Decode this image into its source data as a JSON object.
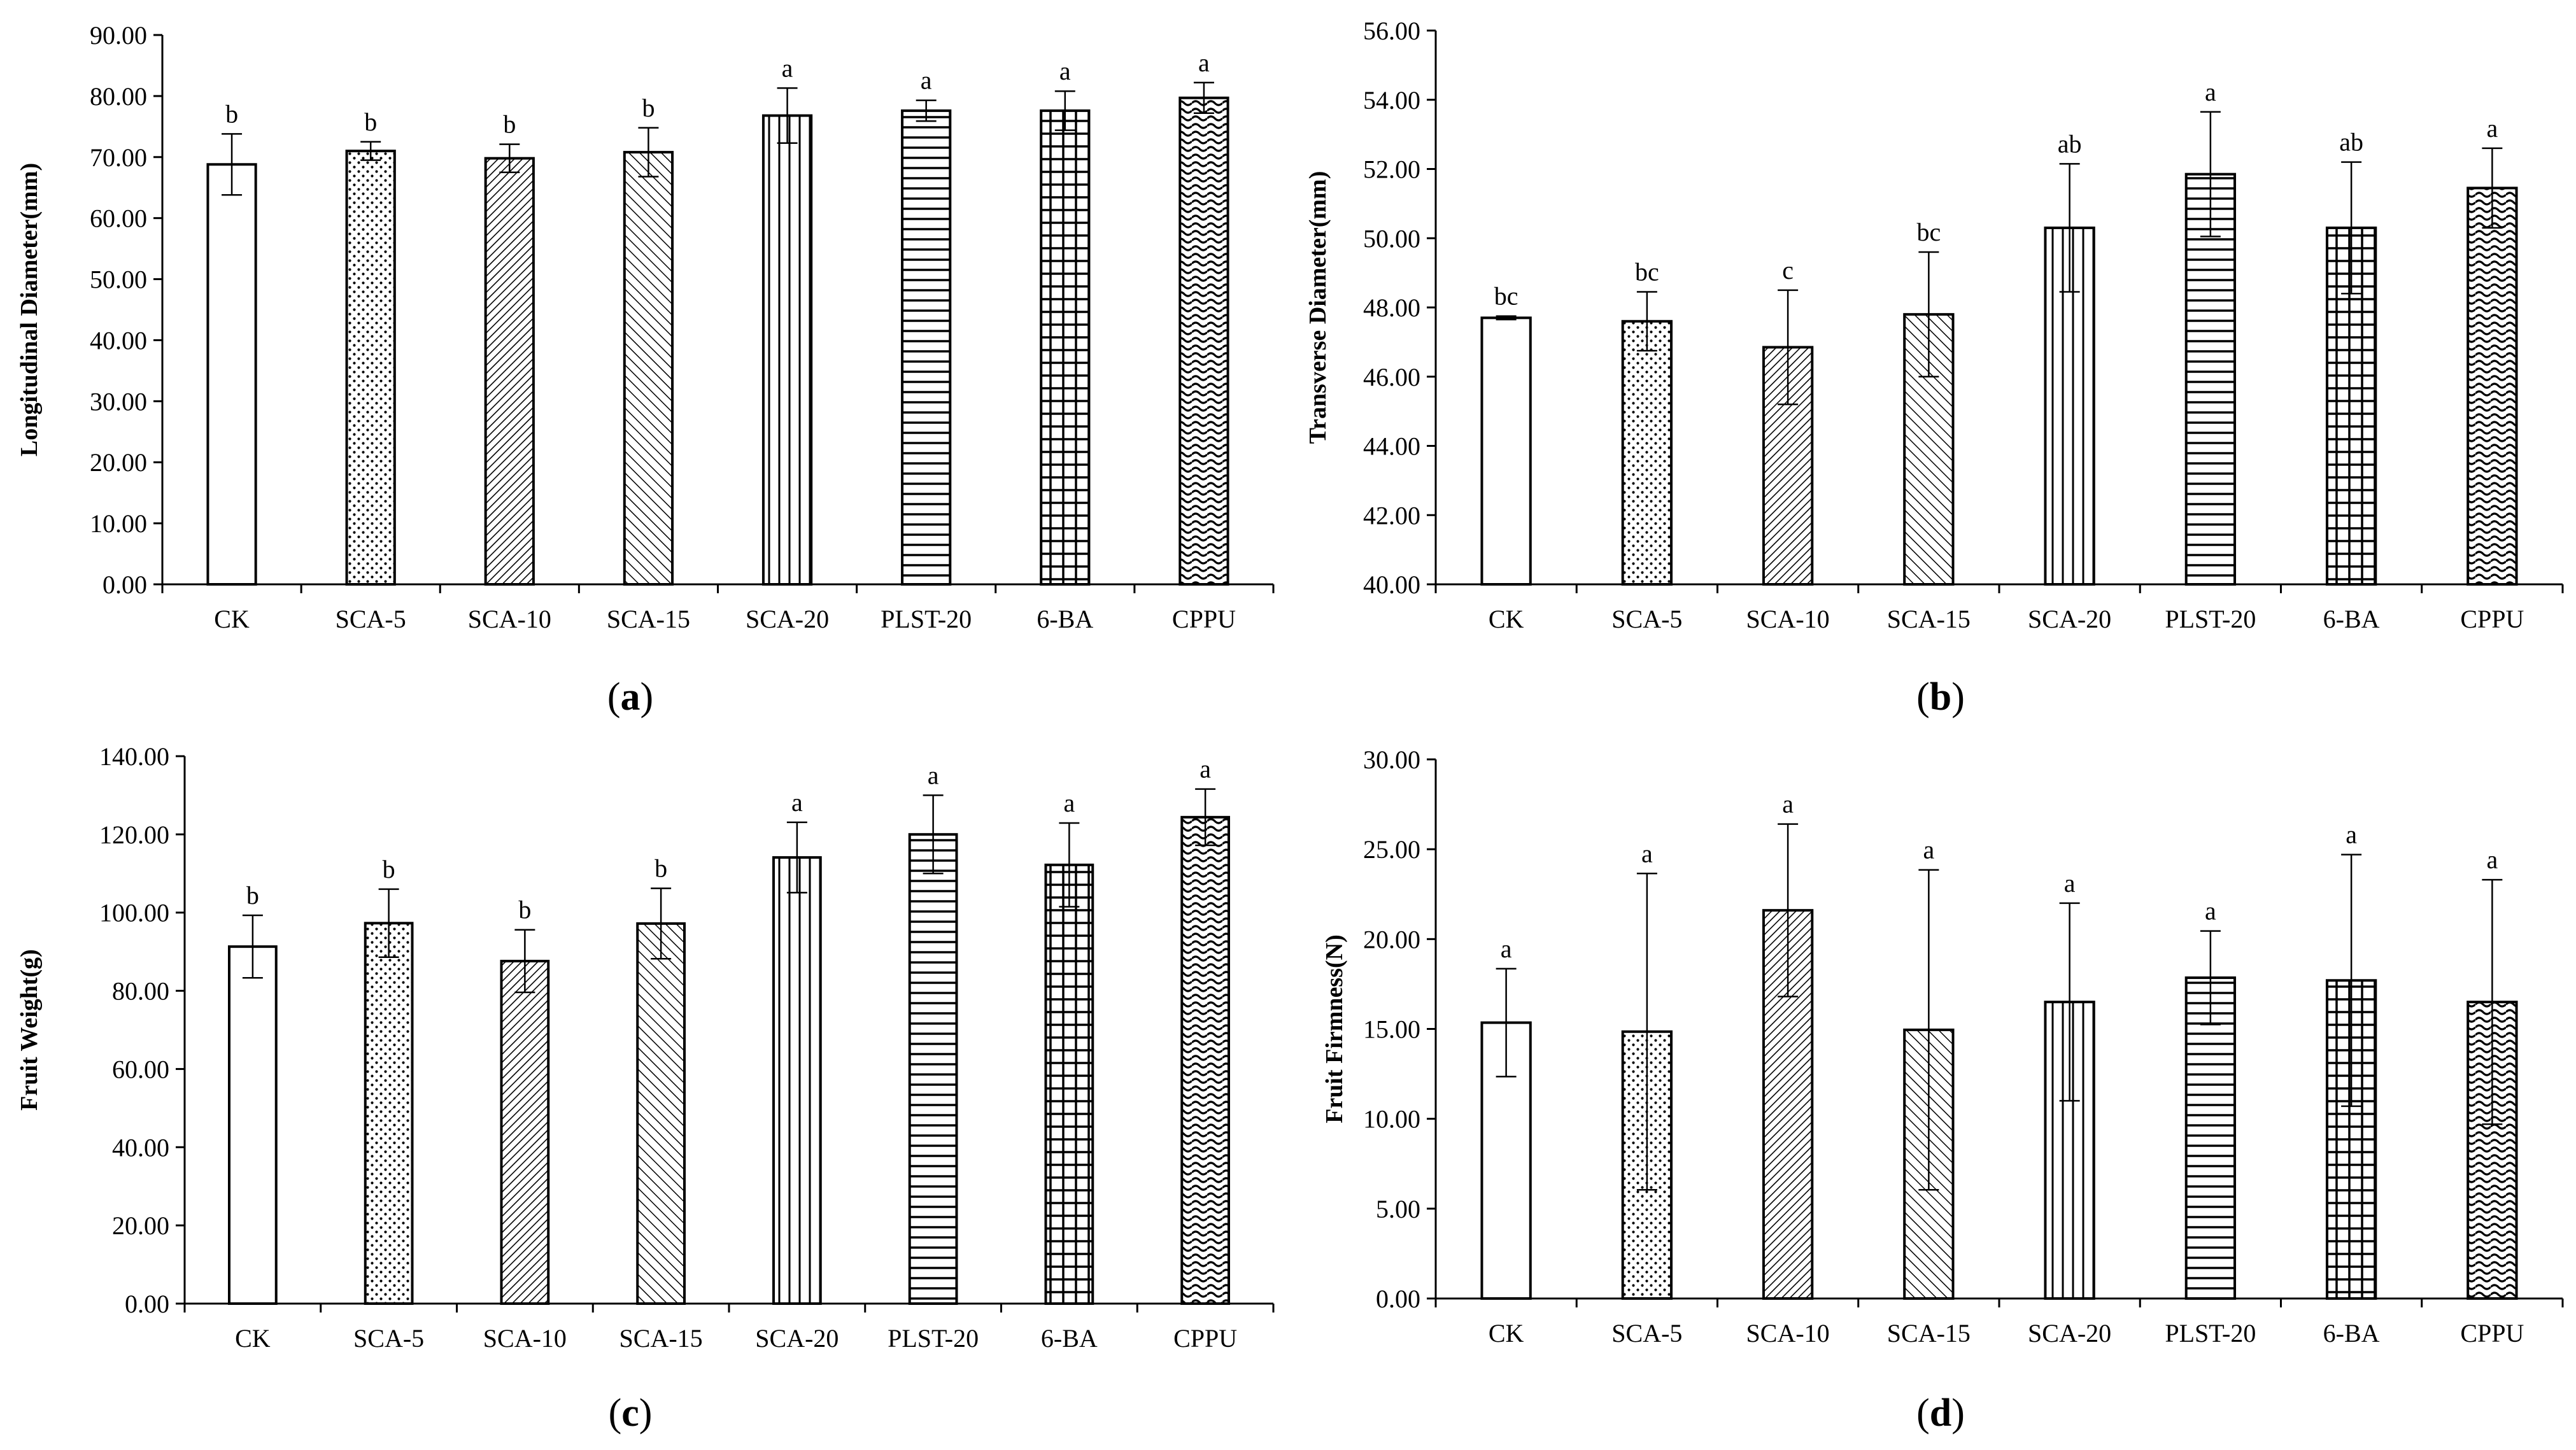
{
  "chart_data": [
    {
      "type": "bar",
      "panel": "a",
      "ylabel": "Longitudinal Diameter(mm)",
      "xlabel": "",
      "ylim": [
        0,
        90
      ],
      "ytick_step": 10,
      "ytick_labels": [
        "0.00",
        "10.00",
        "20.00",
        "30.00",
        "40.00",
        "50.00",
        "60.00",
        "70.00",
        "80.00",
        "90.00"
      ],
      "categories": [
        "CK",
        "SCA-5",
        "SCA-10",
        "SCA-15",
        "SCA-20",
        "PLST-20",
        "6-BA",
        "CPPU"
      ],
      "values": [
        68.8,
        71.0,
        69.8,
        70.8,
        76.8,
        77.6,
        77.6,
        79.7
      ],
      "errors": [
        5.0,
        1.5,
        2.3,
        4.0,
        4.5,
        1.7,
        3.2,
        2.5
      ],
      "significance": [
        "b",
        "b",
        "b",
        "b",
        "a",
        "a",
        "a",
        "a"
      ]
    },
    {
      "type": "bar",
      "panel": "b",
      "ylabel": "Transverse Diameter(mm)",
      "xlabel": "",
      "ylim": [
        40,
        56
      ],
      "ytick_step": 2,
      "ytick_labels": [
        "40.00",
        "42.00",
        "44.00",
        "46.00",
        "48.00",
        "50.00",
        "52.00",
        "54.00",
        "56.00"
      ],
      "categories": [
        "CK",
        "SCA-5",
        "SCA-10",
        "SCA-15",
        "SCA-20",
        "PLST-20",
        "6-BA",
        "CPPU"
      ],
      "values": [
        47.7,
        47.6,
        46.85,
        47.8,
        50.3,
        51.85,
        50.3,
        51.45
      ],
      "errors": [
        0.05,
        0.85,
        1.65,
        1.8,
        1.85,
        1.8,
        1.9,
        1.15
      ],
      "significance": [
        "bc",
        "bc",
        "c",
        "bc",
        "ab",
        "a",
        "ab",
        "a"
      ]
    },
    {
      "type": "bar",
      "panel": "c",
      "ylabel": "Fruit Weight(g)",
      "xlabel": "",
      "ylim": [
        0,
        140
      ],
      "ytick_step": 20,
      "ytick_labels": [
        "0.00",
        "20.00",
        "40.00",
        "60.00",
        "80.00",
        "100.00",
        "120.00",
        "140.00"
      ],
      "categories": [
        "CK",
        "SCA-5",
        "SCA-10",
        "SCA-15",
        "SCA-20",
        "PLST-20",
        "6-BA",
        "CPPU"
      ],
      "values": [
        91.3,
        97.3,
        87.6,
        97.2,
        114.1,
        120.0,
        112.2,
        124.4
      ],
      "errors": [
        8.0,
        8.7,
        8.0,
        9.0,
        9.0,
        10.0,
        10.7,
        7.2
      ],
      "significance": [
        "b",
        "b",
        "b",
        "b",
        "a",
        "a",
        "a",
        "a"
      ]
    },
    {
      "type": "bar",
      "panel": "d",
      "ylabel": "Fruit Firmness(N)",
      "xlabel": "",
      "ylim": [
        0,
        30
      ],
      "ytick_step": 5,
      "ytick_labels": [
        "0.00",
        "5.00",
        "10.00",
        "15.00",
        "20.00",
        "25.00",
        "30.00"
      ],
      "categories": [
        "CK",
        "SCA-5",
        "SCA-10",
        "SCA-15",
        "SCA-20",
        "PLST-20",
        "6-BA",
        "CPPU"
      ],
      "values": [
        15.35,
        14.85,
        21.6,
        14.95,
        16.5,
        17.85,
        17.7,
        16.5
      ],
      "errors": [
        3.0,
        8.8,
        4.8,
        8.9,
        5.5,
        2.6,
        7.0,
        6.8
      ],
      "significance": [
        "a",
        "a",
        "a",
        "a",
        "a",
        "a",
        "a",
        "a"
      ]
    }
  ],
  "captions": [
    {
      "open": "(",
      "letter": "a",
      "close": ")"
    },
    {
      "open": "(",
      "letter": "b",
      "close": ")"
    },
    {
      "open": "(",
      "letter": "c",
      "close": ")"
    },
    {
      "open": "(",
      "letter": "d",
      "close": ")"
    }
  ],
  "colors": {
    "ink": "#000000",
    "bar_fill": "#ffffff",
    "background": "#ffffff"
  },
  "bar_patterns": [
    "none",
    "dots",
    "diag-dense",
    "diag-sparse",
    "vertical",
    "horizontal",
    "grid",
    "wave"
  ]
}
